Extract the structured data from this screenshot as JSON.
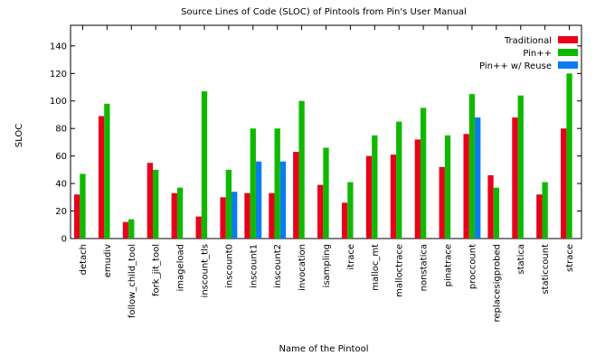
{
  "chart_data": {
    "type": "bar",
    "title": "Source Lines of Code (SLOC) of Pintools from Pin's User Manual",
    "xlabel": "Name of the Pintool",
    "ylabel": "SLOC",
    "ylim": [
      0,
      155
    ],
    "yticks": [
      0,
      20,
      40,
      60,
      80,
      100,
      120,
      140
    ],
    "grid": false,
    "legend_position": "top-right",
    "categories": [
      "detach",
      "emudiv",
      "follow_child_tool",
      "fork_jit_tool",
      "imageload",
      "inscount_tls",
      "inscount0",
      "inscount1",
      "inscount2",
      "invocation",
      "isampling",
      "itrace",
      "malloc_mt",
      "malloctrace",
      "nonstatica",
      "pinatrace",
      "proccount",
      "replacesigprobed",
      "statica",
      "staticcount",
      "strace"
    ],
    "series": [
      {
        "name": "Traditional",
        "color": "#e8001a",
        "values": [
          32,
          89,
          12,
          55,
          33,
          16,
          30,
          33,
          33,
          63,
          39,
          26,
          60,
          61,
          72,
          52,
          76,
          46,
          88,
          32,
          80
        ]
      },
      {
        "name": "Pin++",
        "color": "#10b800",
        "values": [
          47,
          98,
          14,
          50,
          37,
          107,
          50,
          80,
          80,
          100,
          66,
          41,
          75,
          85,
          95,
          75,
          105,
          37,
          104,
          41,
          120
        ]
      },
      {
        "name": "Pin++ w/ Reuse",
        "color": "#0a7cf0",
        "values": [
          null,
          null,
          null,
          null,
          null,
          null,
          34,
          56,
          56,
          null,
          null,
          null,
          null,
          null,
          null,
          null,
          88,
          null,
          null,
          null,
          null
        ]
      }
    ]
  }
}
